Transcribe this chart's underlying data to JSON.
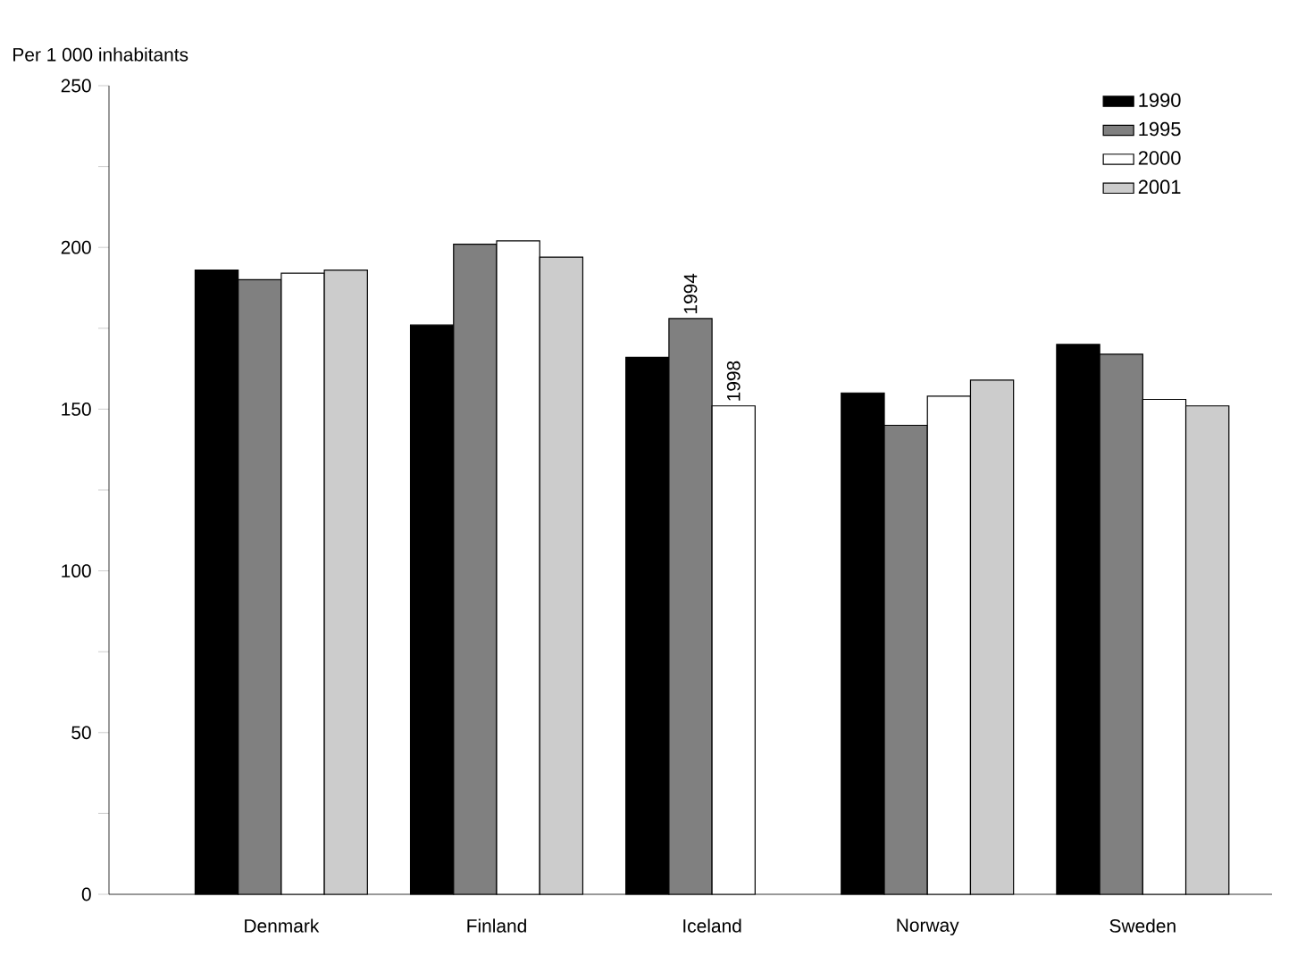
{
  "chart_data": {
    "type": "bar",
    "ylabel": "Per 1 000 inhabitants",
    "categories": [
      "Denmark",
      "Finland",
      "Iceland",
      "Norway",
      "Sweden"
    ],
    "series": [
      {
        "name": "1990",
        "color": "#000000",
        "values": [
          193,
          176,
          166,
          155,
          170
        ]
      },
      {
        "name": "1995",
        "color": "#808080",
        "values": [
          190,
          201,
          178,
          145,
          167
        ]
      },
      {
        "name": "2000",
        "color": "#ffffff",
        "values": [
          192,
          202,
          151,
          154,
          153
        ]
      },
      {
        "name": "2001",
        "color": "#cccccc",
        "values": [
          193,
          197,
          null,
          159,
          151
        ]
      }
    ],
    "ylim": [
      0,
      250
    ],
    "yticks": [
      0,
      {
        "value": 25,
        "label": null
      },
      50,
      {
        "value": 75,
        "label": null
      },
      100,
      {
        "value": 125,
        "label": null
      },
      150,
      {
        "value": 175,
        "label": null
      },
      200,
      {
        "value": 225,
        "label": null
      },
      250
    ],
    "annotations": [
      {
        "text": "1994",
        "x": "Iceland",
        "y": 178
      },
      {
        "text": "1998",
        "x": "Iceland",
        "y": 151
      }
    ],
    "legend": "top right",
    "grid": false
  }
}
